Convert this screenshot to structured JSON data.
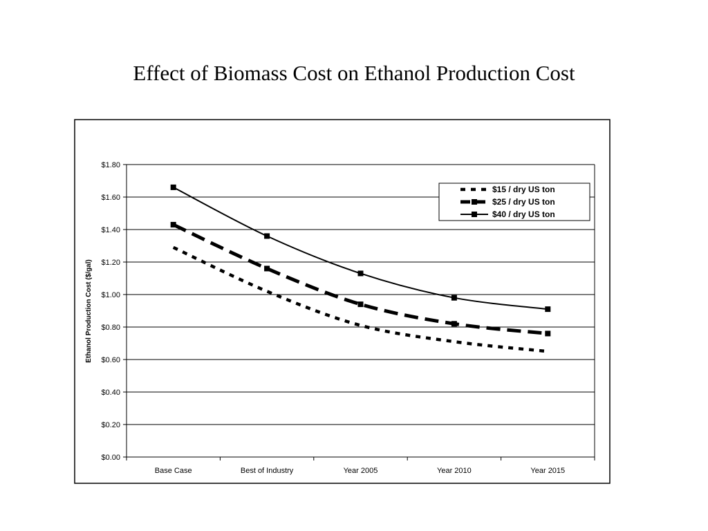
{
  "slide": {
    "title": "Effect of Biomass Cost on Ethanol Production Cost"
  },
  "chart_data": {
    "type": "line",
    "title": "",
    "xlabel": "",
    "ylabel": "Ethanol Production Cost ($/gal)",
    "categories": [
      "Base Case",
      "Best of Industry",
      "Year 2005",
      "Year 2010",
      "Year 2015"
    ],
    "ylim": [
      0,
      1.8
    ],
    "yticks": [
      0,
      0.2,
      0.4,
      0.6,
      0.8,
      1.0,
      1.2,
      1.4,
      1.6,
      1.8
    ],
    "ytick_labels": [
      "$0.00",
      "$0.20",
      "$0.40",
      "$0.60",
      "$0.80",
      "$1.00",
      "$1.20",
      "$1.40",
      "$1.60",
      "$1.80"
    ],
    "grid": true,
    "legend_position": "top-right",
    "series": [
      {
        "name": "$15 / dry US ton",
        "values": [
          1.29,
          1.02,
          0.81,
          0.71,
          0.65
        ],
        "style": "dotted",
        "markers": false,
        "color": "#000000"
      },
      {
        "name": "$25 / dry US ton",
        "values": [
          1.43,
          1.16,
          0.94,
          0.82,
          0.76
        ],
        "style": "dashed",
        "markers": true,
        "color": "#000000"
      },
      {
        "name": "$40 / dry US ton",
        "values": [
          1.66,
          1.36,
          1.13,
          0.98,
          0.91
        ],
        "style": "solid",
        "markers": true,
        "color": "#000000"
      }
    ]
  }
}
